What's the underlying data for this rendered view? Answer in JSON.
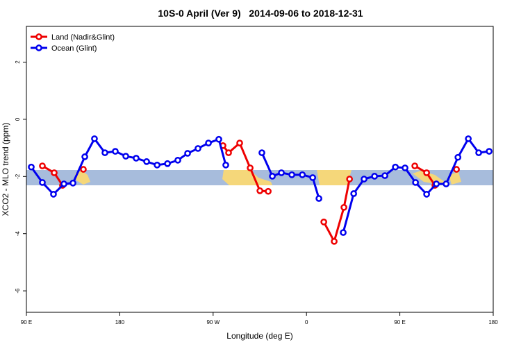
{
  "chart_data": {
    "type": "line",
    "title": "10S-0 April (Ver 9)   2014-09-06 to 2018-12-31",
    "x_label": "Longitude (deg E)",
    "y_label": "XCO2 - MLO trend (ppm)",
    "xlim": [
      90,
      540
    ],
    "ylim": [
      -6.75,
      3.25
    ],
    "xticks": [
      {
        "value": 90,
        "label": "90 E"
      },
      180,
      {
        "value": 270,
        "label": "90 W"
      },
      {
        "value": 360,
        "label": "0"
      },
      {
        "value": 450,
        "label": "90 E"
      },
      {
        "value": 540,
        "label": "180"
      }
    ],
    "yticks": [
      -6,
      -4,
      -2,
      0,
      2
    ],
    "legend": "top-left",
    "series": [
      {
        "name": "Land (Nadir&Glint)",
        "color": "#ee0000",
        "x": [
          105.4,
          116.8,
          124.8,
          135,
          144.9,
          200,
          279.5,
          284.9,
          295.6,
          305.7,
          315.1,
          323.1,
          350,
          376.7,
          386.7,
          396.1,
          401.5,
          430,
          464.4,
          475.8,
          483.8,
          495,
          504.6
        ],
        "values": [
          -1.63,
          -1.87,
          -2.31,
          null,
          -1.75,
          null,
          -0.92,
          -1.17,
          -0.83,
          -1.7,
          -2.5,
          -2.52,
          null,
          -3.59,
          -4.27,
          -3.08,
          -2.09,
          null,
          -1.63,
          -1.87,
          -2.31,
          null,
          -1.75
        ]
      },
      {
        "name": "Ocean (Glint)",
        "color": "#0000ee",
        "x": [
          94.7,
          105.4,
          116.1,
          126.2,
          134.9,
          146.3,
          155.6,
          165.7,
          175.7,
          185.8,
          195.8,
          205.9,
          216,
          226,
          236,
          245.4,
          255.4,
          265.5,
          275.5,
          282.2,
          300,
          317,
          327.1,
          335.8,
          345.9,
          356,
          366,
          372,
          385,
          395.4,
          405.5,
          415.5,
          425.6,
          435.6,
          445.7,
          455,
          465.1,
          475.8,
          485.2,
          494.6,
          506,
          516,
          526,
          536.1
        ],
        "values": [
          -1.67,
          -2.21,
          -2.62,
          -2.26,
          -2.23,
          -1.31,
          -0.68,
          -1.17,
          -1.12,
          -1.29,
          -1.36,
          -1.48,
          -1.6,
          -1.55,
          -1.43,
          -1.19,
          -1.02,
          -0.83,
          -0.7,
          -1.6,
          null,
          -1.17,
          -1.99,
          -1.87,
          -1.94,
          -1.94,
          -2.04,
          -2.77,
          null,
          -3.96,
          -2.6,
          -2.09,
          -1.99,
          -1.97,
          -1.67,
          -1.7,
          -2.21,
          -2.62,
          -2.26,
          -2.26,
          -1.33,
          -0.68,
          -1.17,
          -1.12
        ]
      }
    ]
  }
}
